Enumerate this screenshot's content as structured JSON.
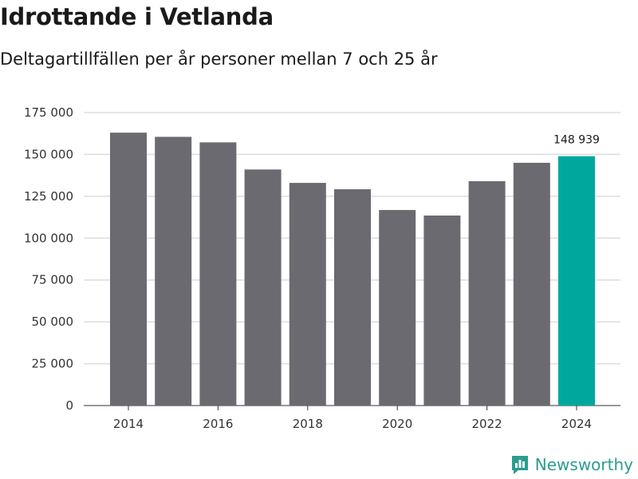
{
  "title": "Idrottande i Vetlanda",
  "subtitle": "Deltagartillfällen per år personer mellan 7 och 25 år",
  "brand": {
    "name": "Newsworthy",
    "icon": "newsworthy-logo-icon"
  },
  "colors": {
    "bar": "#6b6a70",
    "highlight": "#00a79d",
    "grid": "#dddddd",
    "axis": "#333333",
    "brand": "#2a9d8f"
  },
  "chart_data": {
    "type": "bar",
    "title": "Idrottande i Vetlanda",
    "subtitle": "Deltagartillfällen per år personer mellan 7 och 25 år",
    "xlabel": "",
    "ylabel": "",
    "categories": [
      "2014",
      "2015",
      "2016",
      "2017",
      "2018",
      "2019",
      "2020",
      "2021",
      "2022",
      "2023",
      "2024"
    ],
    "values": [
      163000,
      160500,
      157200,
      141000,
      133000,
      129200,
      116800,
      113500,
      134000,
      145000,
      148939
    ],
    "highlight_index": 10,
    "highlight_label": "148 939",
    "ylim": [
      0,
      175000
    ],
    "yticks": [
      0,
      25000,
      50000,
      75000,
      100000,
      125000,
      150000,
      175000
    ],
    "ytick_labels": [
      "0",
      "25 000",
      "50 000",
      "75 000",
      "100 000",
      "125 000",
      "150 000",
      "175 000"
    ],
    "xtick_labels": [
      "2014",
      "2016",
      "2018",
      "2020",
      "2022",
      "2024"
    ],
    "xtick_years": [
      "2014",
      "2016",
      "2018",
      "2020",
      "2022",
      "2024"
    ],
    "grid": true
  }
}
